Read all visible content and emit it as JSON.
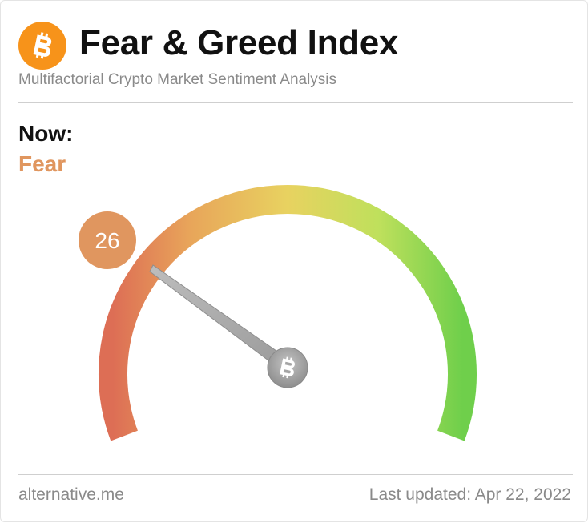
{
  "header": {
    "logo_icon": "bitcoin-icon",
    "title": "Fear & Greed Index",
    "subtitle": "Multifactorial Crypto Market Sentiment Analysis"
  },
  "current": {
    "label": "Now:",
    "classification": "Fear",
    "value": 26,
    "value_text": "26",
    "color": "#e0965f"
  },
  "gauge": {
    "min": 0,
    "max": 100,
    "needle_value": 26,
    "hub_icon": "bitcoin-icon",
    "gradient_colors": [
      "#dd6e55",
      "#e8a55a",
      "#e8d260",
      "#bfe05c",
      "#6fcf4b"
    ]
  },
  "footer": {
    "source": "alternative.me",
    "updated": "Last updated: Apr 22, 2022"
  }
}
